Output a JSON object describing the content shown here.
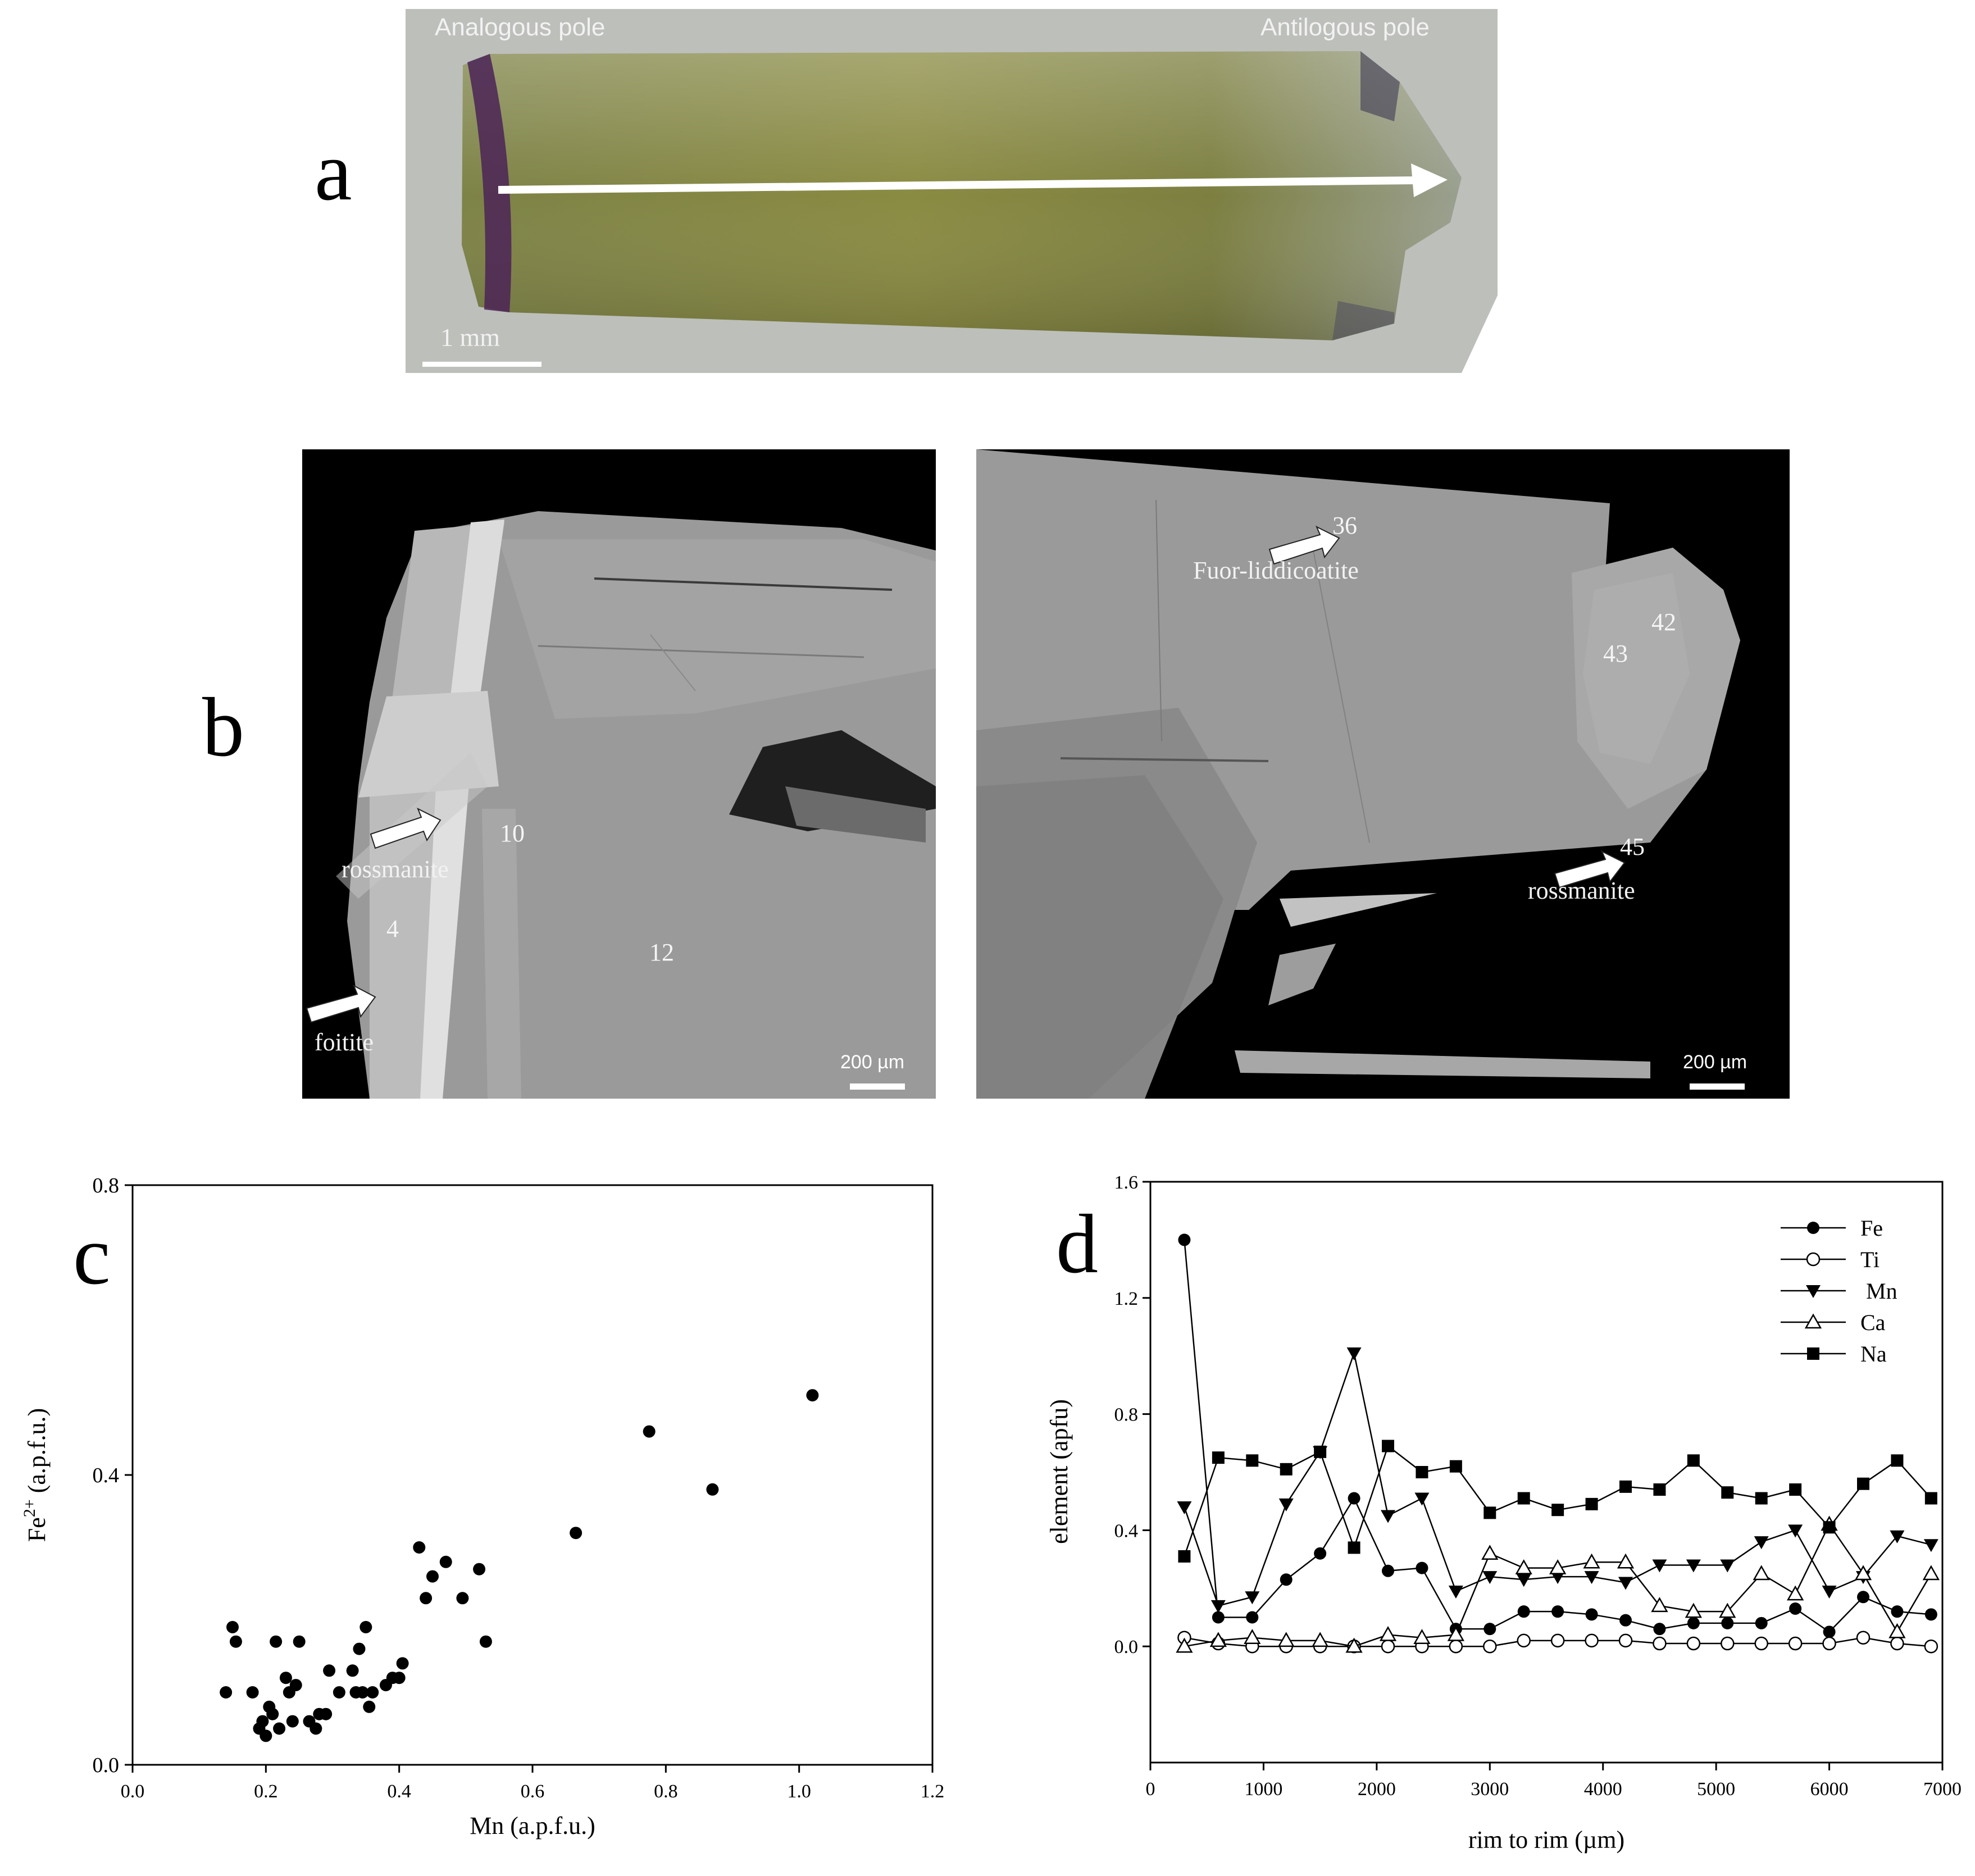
{
  "panel_letters": {
    "a": "a",
    "b": "b",
    "c": "c",
    "d": "d"
  },
  "panel_a": {
    "left_label": "Analogous pole",
    "right_label": "Antilogous pole",
    "scale_label": "1 mm",
    "colors": {
      "crystal": "#8a8f4c",
      "pole_purple": "#4b2357",
      "background": "#bdbfbb"
    }
  },
  "panel_b": {
    "left_image": {
      "labels": {
        "rossmanite": "rossmanite",
        "foitite": "foitite"
      },
      "numbers": [
        "10",
        "4",
        "12"
      ],
      "scale_label": "200 µm"
    },
    "right_image": {
      "labels": {
        "fluor": "Fuor-liddicoatite",
        "rossmanite": "rossmanite"
      },
      "numbers": [
        "36",
        "42",
        "43",
        "45"
      ],
      "scale_label": "200 µm"
    }
  },
  "chart_data": [
    {
      "type": "scatter",
      "panel": "c",
      "title": "",
      "xlabel": "Mn (a.p.f.u.)",
      "ylabel_main": "Fe",
      "ylabel_sup": "2+",
      "ylabel_rest": " (a.p.f.u.)",
      "xlim": [
        0.0,
        1.2
      ],
      "ylim": [
        0.0,
        0.8
      ],
      "xticks": [
        "0.0",
        "0.2",
        "0.4",
        "0.6",
        "0.8",
        "1.0",
        "1.2"
      ],
      "yticks": [
        "0.0",
        "0.4",
        "0.8"
      ],
      "grid": false,
      "points": [
        [
          0.14,
          0.1
        ],
        [
          0.15,
          0.19
        ],
        [
          0.155,
          0.17
        ],
        [
          0.18,
          0.1
        ],
        [
          0.19,
          0.05
        ],
        [
          0.195,
          0.06
        ],
        [
          0.2,
          0.04
        ],
        [
          0.205,
          0.08
        ],
        [
          0.21,
          0.07
        ],
        [
          0.215,
          0.17
        ],
        [
          0.22,
          0.05
        ],
        [
          0.23,
          0.12
        ],
        [
          0.235,
          0.1
        ],
        [
          0.24,
          0.06
        ],
        [
          0.245,
          0.11
        ],
        [
          0.25,
          0.17
        ],
        [
          0.265,
          0.06
        ],
        [
          0.275,
          0.05
        ],
        [
          0.28,
          0.07
        ],
        [
          0.29,
          0.07
        ],
        [
          0.295,
          0.13
        ],
        [
          0.31,
          0.1
        ],
        [
          0.33,
          0.13
        ],
        [
          0.335,
          0.1
        ],
        [
          0.345,
          0.1
        ],
        [
          0.34,
          0.16
        ],
        [
          0.35,
          0.19
        ],
        [
          0.355,
          0.08
        ],
        [
          0.36,
          0.1
        ],
        [
          0.38,
          0.11
        ],
        [
          0.39,
          0.12
        ],
        [
          0.4,
          0.12
        ],
        [
          0.405,
          0.14
        ],
        [
          0.43,
          0.3
        ],
        [
          0.44,
          0.23
        ],
        [
          0.45,
          0.26
        ],
        [
          0.47,
          0.28
        ],
        [
          0.495,
          0.23
        ],
        [
          0.52,
          0.27
        ],
        [
          0.53,
          0.17
        ],
        [
          0.665,
          0.32
        ],
        [
          0.775,
          0.46
        ],
        [
          0.87,
          0.38
        ],
        [
          1.02,
          0.51
        ]
      ]
    },
    {
      "type": "line",
      "panel": "d",
      "title": "",
      "xlabel": "rim to rim (µm)",
      "ylabel": "element (apfu)",
      "xlim": [
        0,
        7000
      ],
      "ylim": [
        -0.4,
        1.6
      ],
      "xticks": [
        "0",
        "1000",
        "2000",
        "3000",
        "4000",
        "5000",
        "6000",
        "7000"
      ],
      "yticks": [
        "0.0",
        "0.4",
        "0.8",
        "1.2",
        "1.6"
      ],
      "grid": false,
      "legend": "top-right",
      "x": [
        300,
        600,
        900,
        1200,
        1500,
        1800,
        2100,
        2400,
        2700,
        3000,
        3300,
        3600,
        3900,
        4200,
        4500,
        4800,
        5100,
        5400,
        5700,
        6000,
        6300,
        6600,
        6900
      ],
      "series": [
        {
          "name": "Fe",
          "marker": "filled-circle",
          "values": [
            1.4,
            0.1,
            0.1,
            0.23,
            0.32,
            0.51,
            0.26,
            0.27,
            0.06,
            0.06,
            0.12,
            0.12,
            0.11,
            0.09,
            0.06,
            0.08,
            0.08,
            0.08,
            0.13,
            0.05,
            0.17,
            0.12,
            0.11
          ]
        },
        {
          "name": "Ti",
          "marker": "open-circle",
          "values": [
            0.03,
            0.01,
            0.0,
            0.0,
            0.0,
            0.0,
            0.0,
            0.0,
            0.0,
            0.0,
            0.02,
            0.02,
            0.02,
            0.02,
            0.01,
            0.01,
            0.01,
            0.01,
            0.01,
            0.01,
            0.03,
            0.01,
            0.0
          ]
        },
        {
          "name": " Mn",
          "marker": "filled-triangle-down",
          "values": [
            0.48,
            0.14,
            0.17,
            0.49,
            0.67,
            1.01,
            0.45,
            0.51,
            0.19,
            0.24,
            0.23,
            0.24,
            0.24,
            0.22,
            0.28,
            0.28,
            0.28,
            0.36,
            0.4,
            0.19,
            0.24,
            0.38,
            0.35
          ]
        },
        {
          "name": "Ca",
          "marker": "open-triangle-up",
          "values": [
            0.0,
            0.02,
            0.03,
            0.02,
            0.02,
            0.0,
            0.04,
            0.03,
            0.04,
            0.32,
            0.27,
            0.27,
            0.29,
            0.29,
            0.14,
            0.12,
            0.12,
            0.25,
            0.18,
            0.42,
            0.25,
            0.05,
            0.25
          ]
        },
        {
          "name": "Na",
          "marker": "filled-square",
          "values": [
            0.31,
            0.65,
            0.64,
            0.61,
            0.67,
            0.34,
            0.69,
            0.6,
            0.62,
            0.46,
            0.51,
            0.47,
            0.49,
            0.55,
            0.54,
            0.64,
            0.53,
            0.51,
            0.54,
            0.41,
            0.56,
            0.64,
            0.51
          ]
        }
      ]
    }
  ]
}
